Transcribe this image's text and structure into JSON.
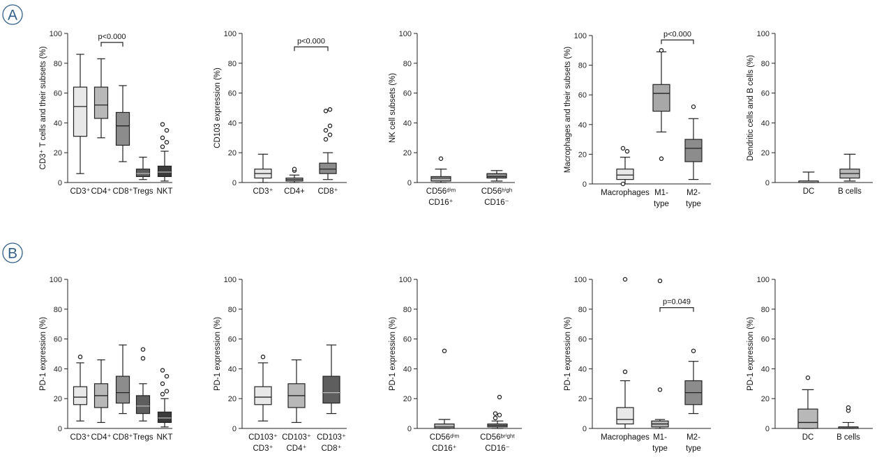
{
  "panel_labels": [
    "A",
    "B"
  ],
  "chart_data": [
    {
      "type": "box",
      "ylim": [
        0,
        100
      ],
      "yticks": [
        0,
        20,
        40,
        60,
        80,
        100
      ],
      "ylabel": "CD3⁺ T cells and their subsets (%)",
      "categories": [
        [
          "CD3⁺"
        ],
        [
          "CD4⁺"
        ],
        [
          "CD8⁺"
        ],
        [
          "Tregs"
        ],
        [
          "NKT"
        ]
      ],
      "boxes": [
        {
          "fill": "#e8e8e8",
          "min": 6,
          "q1": 31,
          "median": 51,
          "q3": 64,
          "max": 86,
          "outliers": []
        },
        {
          "fill": "#b8b8b8",
          "min": 30,
          "q1": 43,
          "median": 52,
          "q3": 64,
          "max": 83,
          "outliers": []
        },
        {
          "fill": "#8c8c8c",
          "min": 14,
          "q1": 25,
          "median": 38,
          "q3": 47,
          "max": 65,
          "outliers": []
        },
        {
          "fill": "#5e5e5e",
          "min": 2,
          "q1": 4,
          "median": 6,
          "q3": 9,
          "max": 17,
          "outliers": []
        },
        {
          "fill": "#3b3b3b",
          "min": 1,
          "q1": 4,
          "median": 7,
          "q3": 11,
          "max": 21,
          "outliers": [
            24,
            27,
            30,
            35,
            39
          ]
        }
      ],
      "brackets": [
        {
          "from": 1,
          "to": 2,
          "y": 94,
          "label": "p<0.000"
        }
      ]
    },
    {
      "type": "box",
      "ylim": [
        0,
        100
      ],
      "yticks": [
        0,
        20,
        40,
        60,
        80,
        100
      ],
      "ylabel": "CD103 expression (%)",
      "categories": [
        [
          "CD3⁺"
        ],
        [
          "CD4+"
        ],
        [
          "CD8⁺"
        ]
      ],
      "boxes": [
        {
          "fill": "#e8e8e8",
          "min": 0,
          "q1": 3,
          "median": 6,
          "q3": 9,
          "max": 19,
          "outliers": []
        },
        {
          "fill": "#b8b8b8",
          "min": 0,
          "q1": 1,
          "median": 2,
          "q3": 3,
          "max": 5,
          "outliers": [
            8,
            9
          ]
        },
        {
          "fill": "#8c8c8c",
          "min": 2,
          "q1": 6,
          "median": 9,
          "q3": 13,
          "max": 20,
          "outliers": [
            29,
            32,
            35,
            38,
            48,
            49
          ]
        }
      ],
      "brackets": [
        {
          "from": 1,
          "to": 2,
          "y": 91,
          "label": "p<0.000"
        }
      ]
    },
    {
      "type": "box",
      "ylim": [
        0,
        100
      ],
      "yticks": [
        0,
        20,
        40,
        60,
        80,
        100
      ],
      "ylabel": "NK cell subsets (%)",
      "categories": [
        [
          "CD56ᵈⁱᵐ",
          "CD16⁺"
        ],
        [
          "CD56ʰⁱᵍʰ",
          "CD16⁻"
        ]
      ],
      "boxes": [
        {
          "fill": "#b8b8b8",
          "min": 0,
          "q1": 1,
          "median": 3,
          "q3": 4,
          "max": 9,
          "outliers": [
            16
          ]
        },
        {
          "fill": "#8c8c8c",
          "min": 1,
          "q1": 3,
          "median": 4,
          "q3": 6,
          "max": 8,
          "outliers": []
        }
      ],
      "brackets": []
    },
    {
      "type": "box",
      "ylim": [
        0,
        100
      ],
      "yticks": [
        0,
        20,
        40,
        60,
        80,
        100
      ],
      "ylabel": "Macrophages and their subsets (%)",
      "categories": [
        [
          "Macrophages"
        ],
        [
          "M1-",
          "type"
        ],
        [
          "M2-",
          "type"
        ]
      ],
      "boxes": [
        {
          "fill": "#e8e8e8",
          "min": 0,
          "q1": 3,
          "median": 6,
          "q3": 10,
          "max": 18,
          "outliers": [
            0,
            22,
            24
          ]
        },
        {
          "fill": "#a8a8a8",
          "min": 35,
          "q1": 49,
          "median": 61,
          "q3": 67,
          "max": 89,
          "outliers": [
            17,
            90
          ]
        },
        {
          "fill": "#8c8c8c",
          "min": 3,
          "q1": 15,
          "median": 24,
          "q3": 30,
          "max": 44,
          "outliers": [
            52
          ]
        }
      ],
      "brackets": [
        {
          "from": 1,
          "to": 2,
          "y": 97,
          "label": "p<0.000"
        }
      ]
    },
    {
      "type": "box",
      "ylim": [
        0,
        100
      ],
      "yticks": [
        0,
        20,
        40,
        60,
        80,
        100
      ],
      "ylabel": "Dendritic cells and B cells (%)",
      "categories": [
        [
          "DC"
        ],
        [
          "B cells"
        ]
      ],
      "boxes": [
        {
          "fill": "#e8e8e8",
          "min": 0,
          "q1": 0,
          "median": 1,
          "q3": 1,
          "max": 7,
          "outliers": []
        },
        {
          "fill": "#b8b8b8",
          "min": 1,
          "q1": 3,
          "median": 6,
          "q3": 9,
          "max": 19,
          "outliers": []
        }
      ],
      "brackets": []
    },
    {
      "type": "box",
      "ylim": [
        0,
        100
      ],
      "yticks": [
        0,
        20,
        40,
        60,
        80,
        100
      ],
      "ylabel": "PD-1 expression (%)",
      "categories": [
        [
          "CD3⁺"
        ],
        [
          "CD4⁺"
        ],
        [
          "CD8⁺"
        ],
        [
          "Tregs"
        ],
        [
          "NKT"
        ]
      ],
      "boxes": [
        {
          "fill": "#e8e8e8",
          "min": 5,
          "q1": 16,
          "median": 21,
          "q3": 28,
          "max": 44,
          "outliers": [
            48
          ]
        },
        {
          "fill": "#b8b8b8",
          "min": 4,
          "q1": 14,
          "median": 22,
          "q3": 30,
          "max": 46,
          "outliers": []
        },
        {
          "fill": "#8c8c8c",
          "min": 10,
          "q1": 17,
          "median": 24,
          "q3": 35,
          "max": 56,
          "outliers": []
        },
        {
          "fill": "#5e5e5e",
          "min": 5,
          "q1": 10,
          "median": 15,
          "q3": 22,
          "max": 30,
          "outliers": [
            47,
            53
          ]
        },
        {
          "fill": "#3b3b3b",
          "min": 1,
          "q1": 4,
          "median": 7,
          "q3": 11,
          "max": 20,
          "outliers": [
            23,
            25,
            30,
            35,
            39
          ]
        }
      ],
      "brackets": []
    },
    {
      "type": "box",
      "ylim": [
        0,
        100
      ],
      "yticks": [
        0,
        20,
        40,
        60,
        80,
        100
      ],
      "ylabel": "PD-1 expression (%)",
      "categories": [
        [
          "CD103⁺",
          "CD3⁺"
        ],
        [
          "CD103⁺",
          "CD4⁺"
        ],
        [
          "CD103⁺",
          "CD8⁺"
        ]
      ],
      "boxes": [
        {
          "fill": "#e8e8e8",
          "min": 5,
          "q1": 16,
          "median": 21,
          "q3": 28,
          "max": 44,
          "outliers": [
            48
          ]
        },
        {
          "fill": "#b8b8b8",
          "min": 4,
          "q1": 14,
          "median": 22,
          "q3": 30,
          "max": 46,
          "outliers": []
        },
        {
          "fill": "#5e5e5e",
          "min": 10,
          "q1": 17,
          "median": 24,
          "q3": 35,
          "max": 56,
          "outliers": []
        }
      ],
      "brackets": []
    },
    {
      "type": "box",
      "ylim": [
        0,
        100
      ],
      "yticks": [
        0,
        20,
        40,
        60,
        80,
        100
      ],
      "ylabel": "PD-1 expression (%)",
      "categories": [
        [
          "CD56ᵈⁱᵐ",
          "CD16⁺"
        ],
        [
          "CD56ᵇʳⁱᵍʰᵗ",
          "CD16⁻"
        ]
      ],
      "boxes": [
        {
          "fill": "#b8b8b8",
          "min": 0,
          "q1": 0,
          "median": 1,
          "q3": 3,
          "max": 6,
          "outliers": [
            52
          ]
        },
        {
          "fill": "#8c8c8c",
          "min": 0,
          "q1": 1,
          "median": 2,
          "q3": 3,
          "max": 5,
          "outliers": [
            7,
            9,
            10,
            21
          ]
        }
      ],
      "brackets": []
    },
    {
      "type": "box",
      "ylim": [
        0,
        100
      ],
      "yticks": [
        0,
        20,
        40,
        60,
        80,
        100
      ],
      "ylabel": "PD-1 expression (%)",
      "categories": [
        [
          "Macrophages"
        ],
        [
          "M1-",
          "type"
        ],
        [
          "M2-",
          "type"
        ]
      ],
      "boxes": [
        {
          "fill": "#e8e8e8",
          "min": 0,
          "q1": 3,
          "median": 6,
          "q3": 14,
          "max": 32,
          "outliers": [
            38,
            100
          ]
        },
        {
          "fill": "#b8b8b8",
          "min": 0,
          "q1": 1,
          "median": 3,
          "q3": 5,
          "max": 6,
          "outliers": [
            26,
            99
          ]
        },
        {
          "fill": "#8c8c8c",
          "min": 10,
          "q1": 16,
          "median": 24,
          "q3": 32,
          "max": 45,
          "outliers": [
            52
          ]
        }
      ],
      "brackets": [
        {
          "from": 1,
          "to": 2,
          "y": 81,
          "label": "p=0.049"
        }
      ]
    },
    {
      "type": "box",
      "ylim": [
        0,
        100
      ],
      "yticks": [
        0,
        20,
        40,
        60,
        80,
        100
      ],
      "ylabel": "PD-1 expression (%)",
      "categories": [
        [
          "DC"
        ],
        [
          "B cells"
        ]
      ],
      "boxes": [
        {
          "fill": "#b8b8b8",
          "min": 0,
          "q1": 0,
          "median": 4,
          "q3": 13,
          "max": 26,
          "outliers": [
            34
          ]
        },
        {
          "fill": "#8c8c8c",
          "min": 0,
          "q1": 0,
          "median": 1,
          "q3": 1,
          "max": 4,
          "outliers": [
            12,
            14
          ]
        }
      ],
      "brackets": []
    }
  ]
}
